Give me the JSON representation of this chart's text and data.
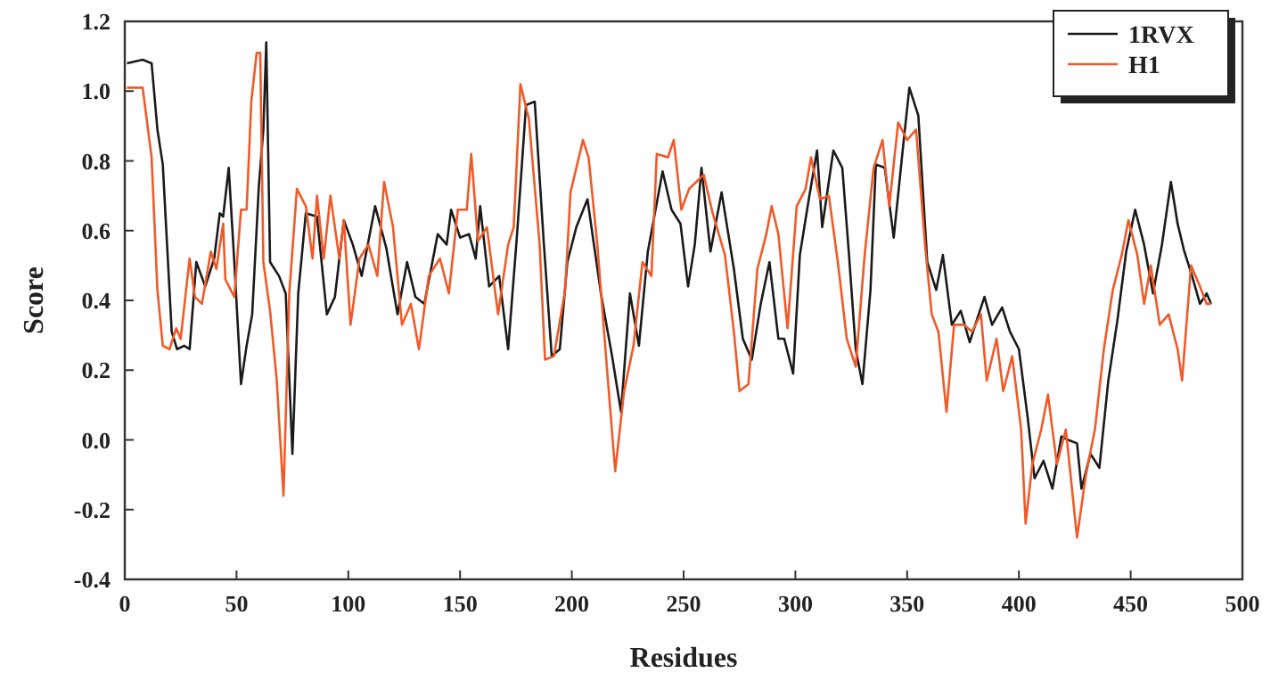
{
  "chart_data": {
    "type": "line",
    "xlabel": "Residues",
    "ylabel": "Score",
    "xlim": [
      0,
      500
    ],
    "xticks": [
      0,
      50,
      100,
      150,
      200,
      250,
      300,
      350,
      400,
      450,
      500
    ],
    "ylim": [
      -0.4,
      1.2
    ],
    "yticks": [
      {
        "value": -0.4,
        "label": "-0.4"
      },
      {
        "value": -0.2,
        "label": "-0.2"
      },
      {
        "value": 0,
        "label": "0.0"
      },
      {
        "value": 0.2,
        "label": "0.2"
      },
      {
        "value": 0.4,
        "label": "0.4"
      },
      {
        "value": 0.6,
        "label": "0.6"
      },
      {
        "value": 0.8,
        "label": "0.8"
      },
      {
        "value": 1.0,
        "label": "1.0"
      },
      {
        "value": 1.2,
        "label": "1.2"
      }
    ],
    "grid": false,
    "legend": "top right",
    "marker": "none",
    "line_style": "solid",
    "series": [
      {
        "name": "1RVX",
        "color": "#1a1a1a",
        "x": [
          1,
          8,
          12,
          14.6,
          17,
          21,
          23.4,
          26.6,
          29,
          32,
          36,
          40,
          42.5,
          44,
          46.5,
          49,
          52,
          54.5,
          57,
          60,
          62,
          63.3,
          65,
          69,
          72,
          75,
          77.6,
          81,
          86,
          90.4,
          94,
          98,
          102,
          106,
          112,
          117,
          122,
          126.3,
          130,
          134,
          140,
          144,
          146,
          150,
          154,
          157,
          159,
          163,
          167.5,
          171.5,
          175.5,
          179.5,
          183.4,
          187.4,
          191,
          194.6,
          198,
          202,
          207,
          213,
          218,
          222,
          226,
          230,
          234,
          240.6,
          244.6,
          248.6,
          252,
          255,
          258,
          262,
          267,
          272.5,
          276.5,
          280.5,
          284.5,
          288.4,
          292.4,
          295,
          299,
          302,
          306,
          309.7,
          312,
          317,
          321,
          324,
          327,
          330,
          333.6,
          336,
          340,
          344,
          348,
          351,
          355,
          359,
          363,
          366,
          370,
          374,
          378,
          382,
          384.6,
          388,
          392.5,
          396,
          400,
          404,
          407,
          411,
          415,
          419,
          422,
          426,
          428,
          432,
          436,
          440,
          444,
          448,
          452,
          456,
          460,
          464,
          468,
          471,
          474,
          477,
          481,
          484,
          486
        ],
        "values": [
          1.08,
          1.09,
          1.08,
          0.89,
          0.79,
          0.31,
          0.26,
          0.27,
          0.26,
          0.51,
          0.44,
          0.52,
          0.65,
          0.64,
          0.78,
          0.51,
          0.16,
          0.27,
          0.36,
          0.73,
          0.89,
          1.14,
          0.51,
          0.47,
          0.42,
          -0.04,
          0.42,
          0.65,
          0.64,
          0.36,
          0.41,
          0.63,
          0.56,
          0.47,
          0.67,
          0.55,
          0.36,
          0.51,
          0.41,
          0.39,
          0.59,
          0.56,
          0.66,
          0.58,
          0.59,
          0.52,
          0.67,
          0.44,
          0.47,
          0.26,
          0.59,
          0.96,
          0.97,
          0.57,
          0.24,
          0.26,
          0.51,
          0.61,
          0.69,
          0.42,
          0.24,
          0.08,
          0.42,
          0.27,
          0.54,
          0.77,
          0.66,
          0.62,
          0.44,
          0.56,
          0.78,
          0.54,
          0.71,
          0.49,
          0.29,
          0.23,
          0.39,
          0.51,
          0.29,
          0.29,
          0.19,
          0.53,
          0.69,
          0.83,
          0.61,
          0.83,
          0.78,
          0.53,
          0.26,
          0.16,
          0.43,
          0.79,
          0.78,
          0.58,
          0.83,
          1.01,
          0.93,
          0.51,
          0.43,
          0.53,
          0.33,
          0.37,
          0.28,
          0.36,
          0.41,
          0.33,
          0.38,
          0.31,
          0.26,
          0.06,
          -0.11,
          -0.06,
          -0.14,
          0.01,
          0.0,
          -0.01,
          -0.14,
          -0.04,
          -0.08,
          0.17,
          0.34,
          0.54,
          0.66,
          0.56,
          0.42,
          0.56,
          0.74,
          0.62,
          0.54,
          0.48,
          0.39,
          0.42,
          0.39
        ]
      },
      {
        "name": "H1",
        "color": "#f05a28",
        "x": [
          1,
          8,
          12,
          14.6,
          17,
          20,
          23,
          25,
          29,
          31.4,
          34.5,
          38.5,
          41,
          44,
          45,
          49,
          52,
          54.5,
          56.6,
          59,
          60.6,
          62,
          65,
          68,
          71,
          73.6,
          77,
          81,
          84,
          86,
          89,
          92,
          96,
          98,
          101,
          105,
          109,
          113,
          116,
          120,
          124,
          128,
          131.6,
          136,
          141,
          145,
          149,
          153,
          155,
          158,
          162,
          167,
          171.5,
          174,
          177,
          180.8,
          185.6,
          188,
          192,
          197,
          199.4,
          205,
          207.5,
          211.4,
          215.4,
          219.4,
          223.4,
          227.6,
          231.6,
          235.6,
          238,
          243,
          245.6,
          249,
          252.5,
          259,
          263,
          268.5,
          272.5,
          275,
          279,
          283,
          287,
          289.4,
          292.4,
          296.5,
          300.6,
          304.6,
          307,
          311,
          315,
          319,
          323,
          327,
          331,
          335,
          339,
          342,
          346,
          350,
          354,
          358,
          361,
          364,
          367.6,
          371,
          375.5,
          379,
          383,
          385.6,
          390,
          393,
          397,
          401,
          403,
          406,
          410,
          413,
          417,
          421,
          426,
          430,
          434,
          438,
          442,
          446,
          449,
          453,
          456,
          459,
          463,
          467,
          471,
          473,
          477,
          481,
          484,
          486
        ],
        "values": [
          1.01,
          1.01,
          0.81,
          0.43,
          0.27,
          0.26,
          0.32,
          0.29,
          0.52,
          0.41,
          0.39,
          0.54,
          0.49,
          0.62,
          0.46,
          0.41,
          0.66,
          0.66,
          0.97,
          1.11,
          1.11,
          0.51,
          0.37,
          0.17,
          -0.16,
          0.42,
          0.72,
          0.67,
          0.52,
          0.7,
          0.52,
          0.7,
          0.52,
          0.63,
          0.33,
          0.52,
          0.56,
          0.47,
          0.74,
          0.61,
          0.33,
          0.39,
          0.26,
          0.47,
          0.52,
          0.42,
          0.66,
          0.66,
          0.82,
          0.57,
          0.61,
          0.36,
          0.56,
          0.61,
          1.02,
          0.92,
          0.56,
          0.23,
          0.24,
          0.43,
          0.71,
          0.86,
          0.81,
          0.56,
          0.23,
          -0.09,
          0.14,
          0.27,
          0.51,
          0.47,
          0.82,
          0.81,
          0.86,
          0.66,
          0.72,
          0.76,
          0.65,
          0.53,
          0.31,
          0.14,
          0.16,
          0.49,
          0.59,
          0.67,
          0.59,
          0.32,
          0.67,
          0.72,
          0.81,
          0.69,
          0.7,
          0.51,
          0.29,
          0.21,
          0.53,
          0.78,
          0.86,
          0.67,
          0.91,
          0.86,
          0.89,
          0.56,
          0.36,
          0.31,
          0.08,
          0.33,
          0.33,
          0.31,
          0.36,
          0.17,
          0.29,
          0.14,
          0.24,
          0.03,
          -0.24,
          -0.07,
          0.03,
          0.13,
          -0.07,
          0.03,
          -0.28,
          -0.1,
          0.03,
          0.26,
          0.43,
          0.53,
          0.63,
          0.53,
          0.39,
          0.5,
          0.33,
          0.36,
          0.26,
          0.17,
          0.5,
          0.44,
          0.39,
          0.39
        ]
      }
    ]
  }
}
